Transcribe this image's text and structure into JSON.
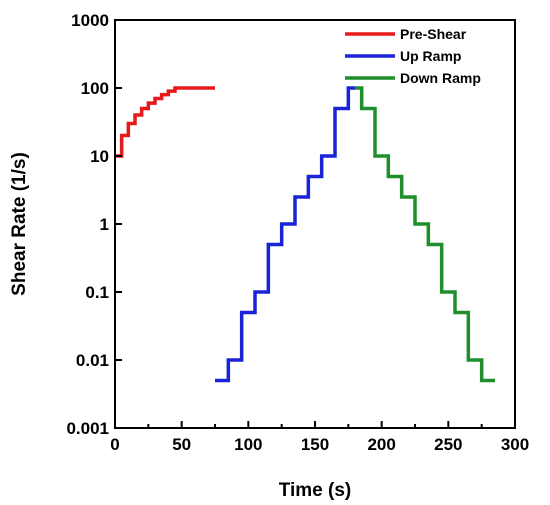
{
  "chart_data": {
    "type": "line",
    "step": true,
    "xlabel": "Time (s)",
    "ylabel": "Shear Rate (1/s)",
    "xlim": [
      0,
      300
    ],
    "ylim": [
      0.001,
      1000
    ],
    "yscale": "log",
    "grid": false,
    "legend_position": "top-right",
    "xticks": [
      0,
      50,
      100,
      150,
      200,
      250,
      300
    ],
    "xtick_labels": [
      "0",
      "50",
      "100",
      "150",
      "200",
      "250",
      "300"
    ],
    "yticks": [
      0.001,
      0.01,
      0.1,
      1,
      10,
      100,
      1000
    ],
    "ytick_labels": [
      "0.001",
      "0.01",
      "0.1",
      "1",
      "10",
      "100",
      "1000"
    ],
    "series": [
      {
        "name": "Pre-Shear",
        "color": "#e8191b",
        "x": [
          0,
          5,
          10,
          15,
          20,
          25,
          30,
          35,
          40,
          45,
          50,
          55,
          60,
          65,
          70,
          75
        ],
        "y": [
          10,
          20,
          30,
          40,
          50,
          60,
          70,
          80,
          90,
          100,
          100,
          100,
          100,
          100,
          100,
          100
        ]
      },
      {
        "name": "Up Ramp",
        "color": "#1a24d6",
        "x": [
          75,
          85,
          95,
          105,
          115,
          125,
          135,
          145,
          155,
          165,
          175,
          180
        ],
        "y": [
          0.005,
          0.01,
          0.05,
          0.1,
          0.5,
          1,
          2.5,
          5,
          10,
          50,
          100,
          100
        ]
      },
      {
        "name": "Down Ramp",
        "color": "#1f8f2c",
        "x": [
          180,
          185,
          195,
          205,
          215,
          225,
          235,
          245,
          255,
          265,
          275,
          285
        ],
        "y": [
          100,
          50,
          10,
          5,
          2.5,
          1,
          0.5,
          0.1,
          0.05,
          0.01,
          0.005,
          0.005
        ]
      }
    ]
  }
}
